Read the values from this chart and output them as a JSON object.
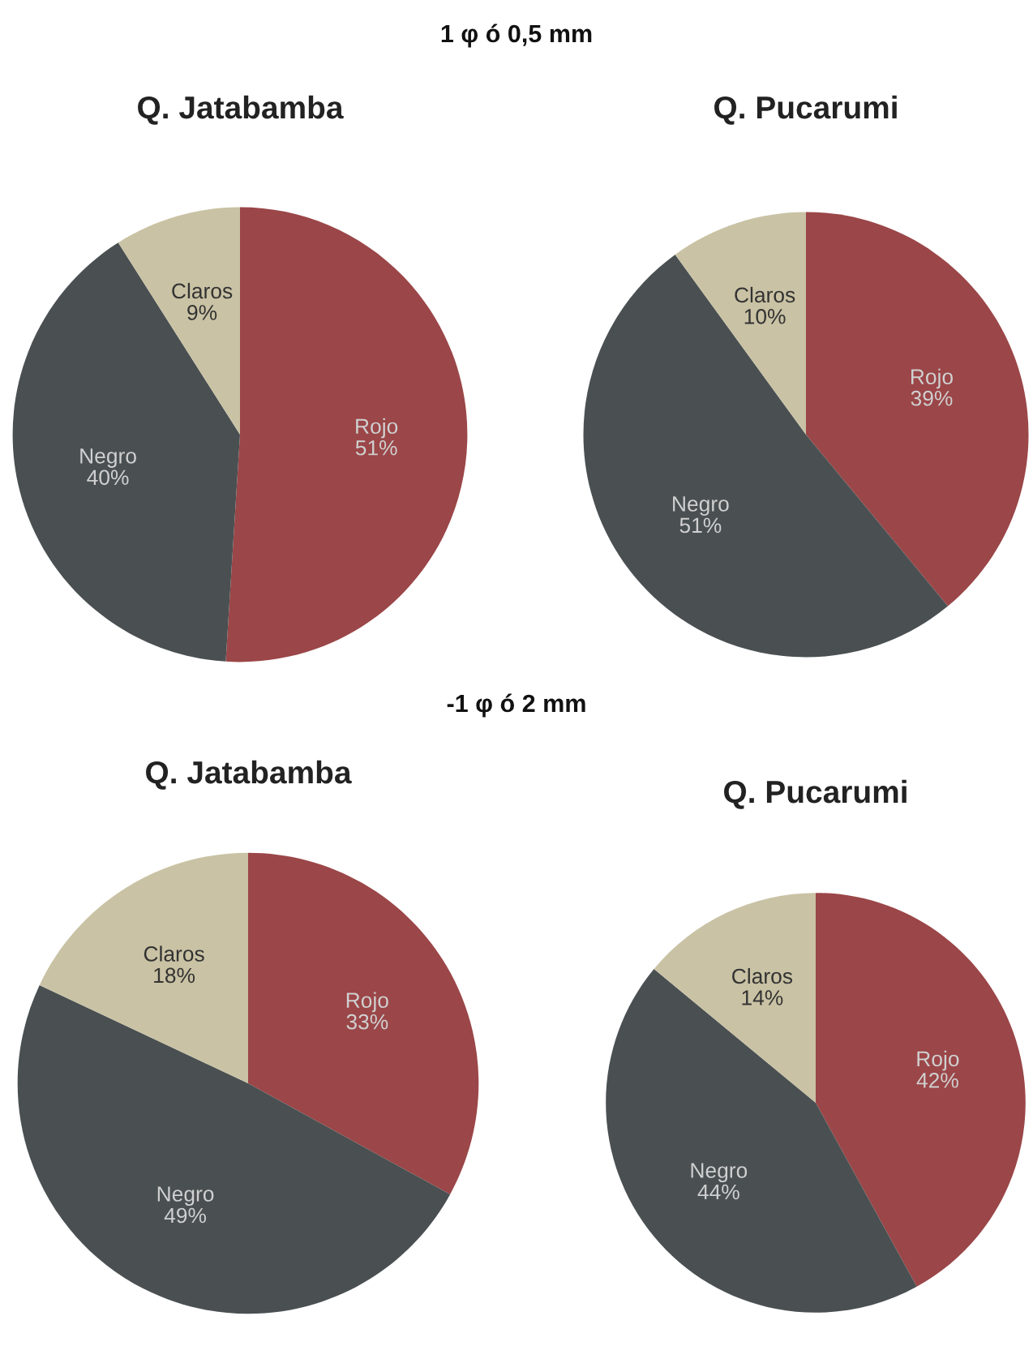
{
  "chart_data": [
    {
      "type": "pie",
      "title": "Q. Jatabamba",
      "annotations": [
        "1 φ ó 0,5 mm"
      ],
      "categories": [
        "Rojo",
        "Negro",
        "Claros"
      ],
      "values": [
        51,
        40,
        9
      ],
      "colors": [
        "#9b4648",
        "#4a5052",
        "#c9c2a4"
      ],
      "value_labels": [
        "51%",
        "40%",
        "9%"
      ]
    },
    {
      "type": "pie",
      "title": "Q. Pucarumi",
      "categories": [
        "Rojo",
        "Negro",
        "Claros"
      ],
      "values": [
        39,
        51,
        10
      ],
      "colors": [
        "#9b4648",
        "#4a5052",
        "#c9c2a4"
      ],
      "value_labels": [
        "39%",
        "51%",
        "10%"
      ]
    },
    {
      "type": "pie",
      "title": "Q. Jatabamba",
      "annotations": [
        "-1 φ ó 2 mm"
      ],
      "categories": [
        "Rojo",
        "Negro",
        "Claros"
      ],
      "values": [
        33,
        49,
        18
      ],
      "colors": [
        "#9b4648",
        "#4a5052",
        "#c9c2a4"
      ],
      "value_labels": [
        "33%",
        "49%",
        "18%"
      ]
    },
    {
      "type": "pie",
      "title": "Q. Pucarumi",
      "categories": [
        "Rojo",
        "Negro",
        "Claros"
      ],
      "values": [
        42,
        44,
        14
      ],
      "colors": [
        "#9b4648",
        "#4a5052",
        "#c9c2a4"
      ],
      "value_labels": [
        "42%",
        "44%",
        "14%"
      ]
    }
  ]
}
